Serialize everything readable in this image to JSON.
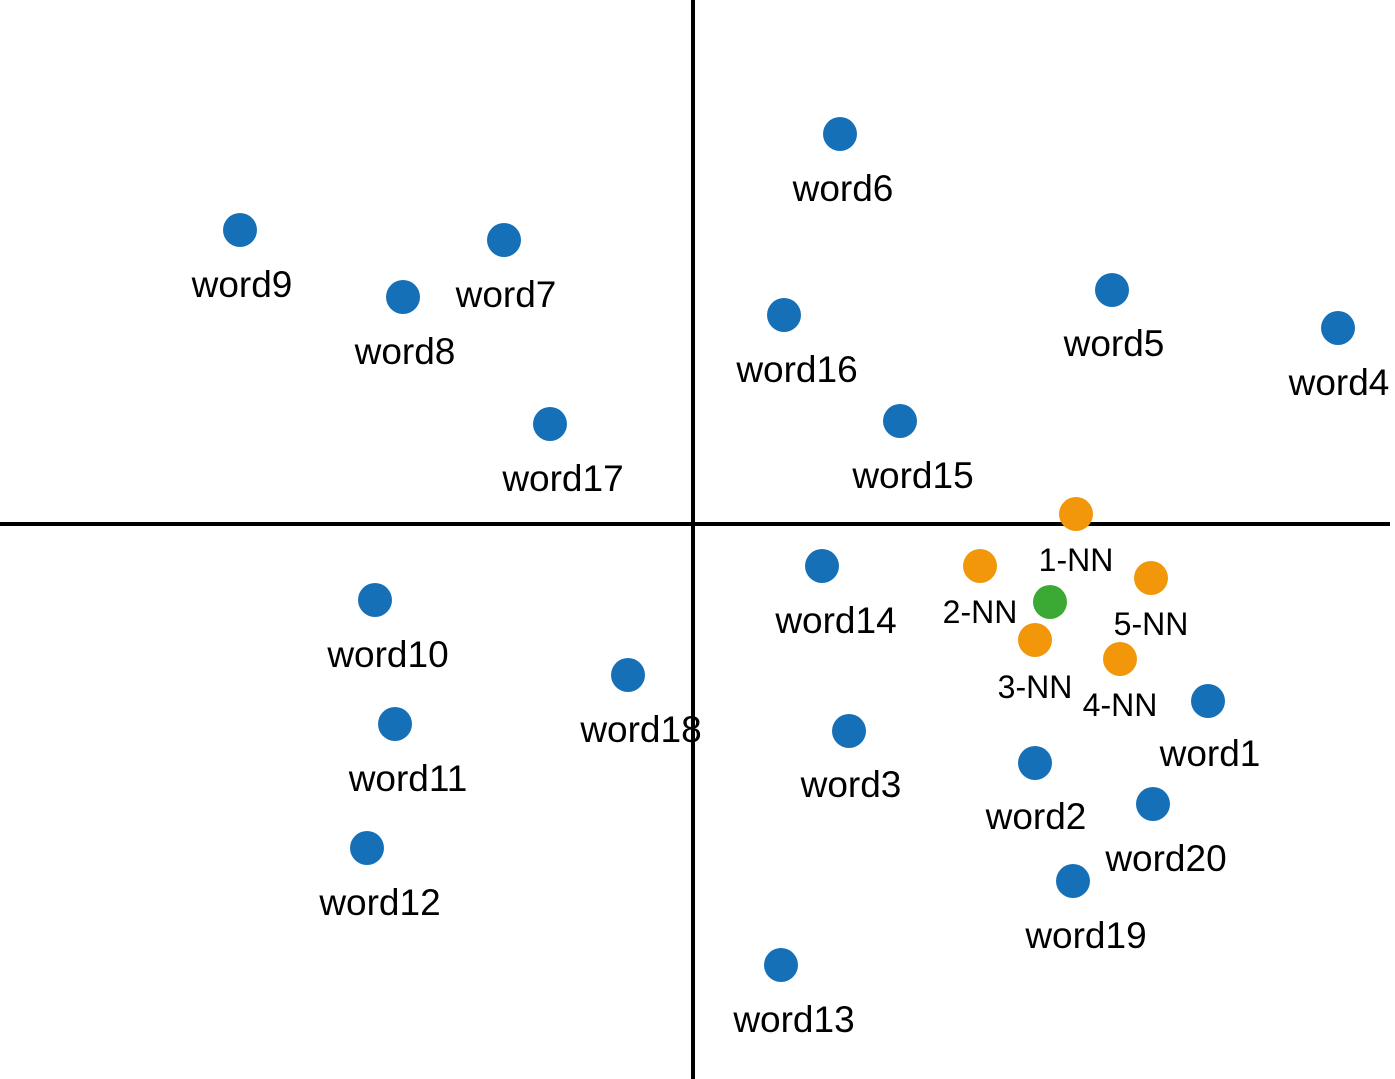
{
  "colors": {
    "word": "#1570b8",
    "neighbor": "#f2960a",
    "query": "#3aaa35",
    "axis": "#000000"
  },
  "words": [
    {
      "label": "word1"
    },
    {
      "label": "word2"
    },
    {
      "label": "word3"
    },
    {
      "label": "word4"
    },
    {
      "label": "word5"
    },
    {
      "label": "word6"
    },
    {
      "label": "word7"
    },
    {
      "label": "word8"
    },
    {
      "label": "word9"
    },
    {
      "label": "word10"
    },
    {
      "label": "word11"
    },
    {
      "label": "word12"
    },
    {
      "label": "word13"
    },
    {
      "label": "word14"
    },
    {
      "label": "word15"
    },
    {
      "label": "word16"
    },
    {
      "label": "word17"
    },
    {
      "label": "word18"
    },
    {
      "label": "word19"
    },
    {
      "label": "word20"
    }
  ],
  "neighbors": [
    {
      "label": "1-NN"
    },
    {
      "label": "2-NN"
    },
    {
      "label": "3-NN"
    },
    {
      "label": "4-NN"
    },
    {
      "label": "5-NN"
    }
  ],
  "query_point": {
    "label": ""
  }
}
